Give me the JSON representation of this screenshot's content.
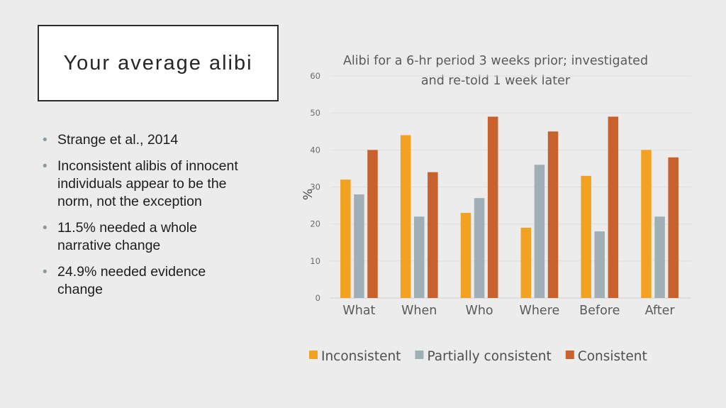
{
  "slide": {
    "title": "Your average alibi",
    "bullets": [
      "Strange et al., 2014",
      "Inconsistent alibis of innocent individuals appear to be the norm, not the exception",
      "11.5% needed a whole narrative change",
      "24.9% needed evidence change"
    ]
  },
  "chart_data": {
    "type": "bar",
    "title": "Alibi for a 6-hr period 3 weeks prior; investigated and re-told 1 week later",
    "xlabel": "",
    "ylabel": "%",
    "ylim": [
      0,
      60
    ],
    "yticks": [
      0,
      10,
      20,
      30,
      40,
      50,
      60
    ],
    "grid": true,
    "legend_position": "bottom",
    "categories": [
      "What",
      "When",
      "Who",
      "Where",
      "Before",
      "After"
    ],
    "series": [
      {
        "name": "Inconsistent",
        "color": "#f2a220",
        "values": [
          32,
          44,
          23,
          19,
          33,
          40
        ]
      },
      {
        "name": "Partially consistent",
        "color": "#a0afb5",
        "values": [
          28,
          22,
          27,
          36,
          18,
          22
        ]
      },
      {
        "name": "Consistent",
        "color": "#c8612c",
        "values": [
          40,
          34,
          49,
          45,
          49,
          38
        ]
      }
    ]
  }
}
